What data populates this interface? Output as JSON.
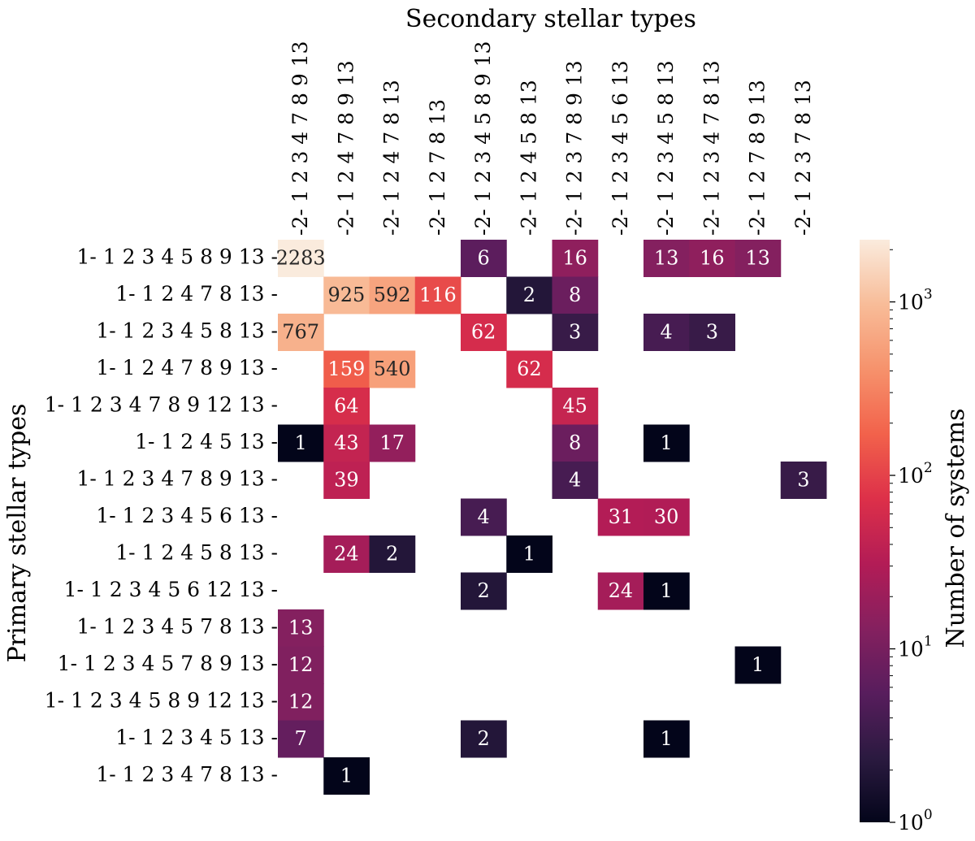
{
  "chart_data": {
    "type": "heatmap",
    "title": "",
    "xlabel": "Secondary stellar types",
    "ylabel": "Primary stellar types",
    "x_categories": [
      "-2- 1 2 3 4 7 8 9 13",
      "-2- 1 2 4 7 8 9 13",
      "-2- 1 2 4 7 8 13",
      "-2- 1 2 7 8 13",
      "-2- 1 2 3 4 5 8 9 13",
      "-2- 1 2 4 5 8 13",
      "-2- 1 2 3 7 8 9 13",
      "-2- 1 2 3 4 5 6 13",
      "-2- 1 2 3 4 5 8 13",
      "-2- 1 2 3 4 7 8 13",
      "-2- 1 2 7 8 9 13",
      "-2- 1 2 3 7 8 13"
    ],
    "y_categories": [
      "1- 1 2 3 4 5 8 9 13 -",
      "1- 1 2 4 7 8 13 -",
      "1- 1 2 3 4 5 8 13 -",
      "1- 1 2 4 7 8 9 13 -",
      "1- 1 2 3 4 7 8 9 12 13 -",
      "1- 1 2 4 5 13 -",
      "1- 1 2 3 4 7 8 9 13 -",
      "1- 1 2 3 4 5 6 13 -",
      "1- 1 2 4 5 8 13 -",
      "1- 1 2 3 4 5 6 12 13 -",
      "1- 1 2 3 4 5 7 8 13 -",
      "1- 1 2 3 4 5 7 8 9 13 -",
      "1- 1 2 3 4 5 8 9 12 13 -",
      "1- 1 2 3 4 5 13 -",
      "1- 1 2 3 4 7 8 13 -"
    ],
    "values": [
      [
        2283,
        null,
        null,
        null,
        6,
        null,
        16,
        null,
        13,
        16,
        13,
        null
      ],
      [
        null,
        925,
        592,
        116,
        null,
        2,
        8,
        null,
        null,
        null,
        null,
        null
      ],
      [
        767,
        null,
        null,
        null,
        62,
        null,
        3,
        null,
        4,
        3,
        null,
        null
      ],
      [
        null,
        159,
        540,
        null,
        null,
        62,
        null,
        null,
        null,
        null,
        null,
        null
      ],
      [
        null,
        64,
        null,
        null,
        null,
        null,
        45,
        null,
        null,
        null,
        null,
        null
      ],
      [
        1,
        43,
        17,
        null,
        null,
        null,
        8,
        null,
        1,
        null,
        null,
        null
      ],
      [
        null,
        39,
        null,
        null,
        null,
        null,
        4,
        null,
        null,
        null,
        null,
        3
      ],
      [
        null,
        null,
        null,
        null,
        4,
        null,
        null,
        31,
        30,
        null,
        null,
        null
      ],
      [
        null,
        24,
        2,
        null,
        null,
        1,
        null,
        null,
        null,
        null,
        null,
        null
      ],
      [
        null,
        null,
        null,
        null,
        2,
        null,
        null,
        24,
        1,
        null,
        null,
        null
      ],
      [
        13,
        null,
        null,
        null,
        null,
        null,
        null,
        null,
        null,
        null,
        null,
        null
      ],
      [
        12,
        null,
        null,
        null,
        null,
        null,
        null,
        null,
        null,
        null,
        1,
        null
      ],
      [
        12,
        null,
        null,
        null,
        null,
        null,
        null,
        null,
        null,
        null,
        null,
        null
      ],
      [
        7,
        null,
        null,
        null,
        2,
        null,
        null,
        null,
        1,
        null,
        null,
        null
      ],
      [
        null,
        1,
        null,
        null,
        null,
        null,
        null,
        null,
        null,
        null,
        null,
        null
      ]
    ],
    "colorbar": {
      "label": "Number of systems",
      "scale": "log",
      "range": [
        1,
        2283
      ],
      "tick_values": [
        1,
        10,
        100,
        1000
      ],
      "tick_labels": [
        "10",
        "10",
        "10",
        "10"
      ],
      "tick_exponents": [
        "0",
        "1",
        "2",
        "3"
      ],
      "colormap": "rocket",
      "colormap_stops": [
        "#03051a",
        "#2b1a40",
        "#581d5d",
        "#85205f",
        "#b31c56",
        "#dd3049",
        "#f2624b",
        "#f6926c",
        "#f8bc98",
        "#faebdd"
      ]
    },
    "grid": false,
    "legend": "colorbar-right"
  }
}
